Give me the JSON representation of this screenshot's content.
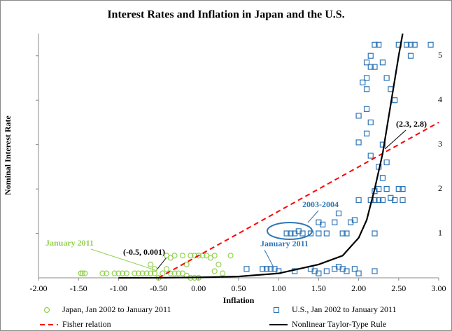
{
  "chart_data": {
    "type": "scatter",
    "title": "Interest Rates and Inflation in Japan and the U.S.",
    "xlabel": "Inflation",
    "ylabel": "Nominal Interest Rate",
    "xlim": [
      -2,
      3
    ],
    "ylim": [
      0,
      5.5
    ],
    "xticks": [
      {
        "value": -2,
        "label": "-2.00"
      },
      {
        "value": -1.5,
        "label": "-1.50"
      },
      {
        "value": -1,
        "label": "-1.00"
      },
      {
        "value": -0.5,
        "label": "-0.50"
      },
      {
        "value": 0,
        "label": "0.00"
      },
      {
        "value": 0.5,
        "label": "0.50"
      },
      {
        "value": 1,
        "label": "1.00"
      },
      {
        "value": 1.5,
        "label": "1.50"
      },
      {
        "value": 2,
        "label": "2.00"
      },
      {
        "value": 2.5,
        "label": "2.50"
      },
      {
        "value": 3,
        "label": "3.00"
      }
    ],
    "yticks": [
      1,
      2,
      3,
      4,
      5
    ],
    "grid": false,
    "legend": "bottom",
    "annotations": [
      "January 2011",
      "(-0.5, 0.001)",
      "2003-2004",
      "January 2011",
      "(2.3, 2.8)"
    ],
    "series": [
      {
        "name": "Japan, Jan 2002 to January 2011",
        "color": "#92d050",
        "mode": "marker",
        "marker": "circle",
        "x": [
          -1.47,
          -1.45,
          -1.42,
          -1.2,
          -1.15,
          -1.05,
          -1.0,
          -0.95,
          -0.9,
          -0.8,
          -0.75,
          -0.7,
          -0.65,
          -0.6,
          -0.55,
          -0.5,
          -0.45,
          -0.4,
          -0.35,
          -0.3,
          -0.25,
          -0.2,
          -0.15,
          -0.1,
          -0.05,
          0.0,
          -0.4,
          -0.35,
          -0.3,
          -0.2,
          -0.15,
          -0.1,
          -0.05,
          0.0,
          0.05,
          0.1,
          0.15,
          0.2,
          0.25,
          0.4,
          0.2,
          0.3,
          -0.6,
          -0.55
        ],
        "values": [
          0.1,
          0.1,
          0.1,
          0.1,
          0.1,
          0.1,
          0.1,
          0.1,
          0.1,
          0.1,
          0.1,
          0.1,
          0.1,
          0.1,
          0.1,
          0.0,
          0.1,
          0.2,
          0.1,
          0.1,
          0.1,
          0.1,
          0.05,
          0.0,
          0.0,
          0.0,
          0.5,
          0.45,
          0.5,
          0.5,
          0.3,
          0.5,
          0.5,
          0.5,
          0.5,
          0.5,
          0.45,
          0.5,
          0.3,
          0.5,
          0.15,
          0.1,
          0.3,
          0.2
        ]
      },
      {
        "name": "U.S., Jan 2002 to January 2011",
        "color": "#2e75b6",
        "mode": "marker",
        "marker": "square",
        "x": [
          0.6,
          0.8,
          0.85,
          0.9,
          0.95,
          1.0,
          1.2,
          1.4,
          1.45,
          1.5,
          1.6,
          1.7,
          1.75,
          1.8,
          1.85,
          1.95,
          2.0,
          2.2,
          1.1,
          1.15,
          1.2,
          1.25,
          1.3,
          1.4,
          1.5,
          1.5,
          1.55,
          1.6,
          1.7,
          1.75,
          1.8,
          1.85,
          1.9,
          1.95,
          2.0,
          2.2,
          2.2,
          2.25,
          2.3,
          2.35,
          2.45,
          2.5,
          2.55,
          2.55,
          2.4,
          2.25,
          2.2,
          2.15,
          2.3,
          2.25,
          2.35,
          2.3,
          2.15,
          2.0,
          2.1,
          2.15,
          2.0,
          2.1,
          2.1,
          2.05,
          2.1,
          2.1,
          2.15,
          2.15,
          2.2,
          2.25,
          2.3,
          2.35,
          2.4,
          2.45,
          2.5,
          2.6,
          2.65,
          2.7,
          2.9,
          2.65,
          2.2
        ],
        "values": [
          0.2,
          0.2,
          0.2,
          0.2,
          0.2,
          0.15,
          0.15,
          0.2,
          0.15,
          0.1,
          0.15,
          0.2,
          0.25,
          0.2,
          0.15,
          0.2,
          0.1,
          0.15,
          1.0,
          1.0,
          1.0,
          1.05,
          1.0,
          1.0,
          1.0,
          1.25,
          1.2,
          1.0,
          1.25,
          1.45,
          1.0,
          1.0,
          1.25,
          1.3,
          1.75,
          1.0,
          1.75,
          1.75,
          1.75,
          2.0,
          1.75,
          2.0,
          1.75,
          2.0,
          1.8,
          2.0,
          1.95,
          1.75,
          2.25,
          2.5,
          2.6,
          3.0,
          2.75,
          3.05,
          3.25,
          3.5,
          3.65,
          3.8,
          4.25,
          4.4,
          4.5,
          4.85,
          5.0,
          4.75,
          5.25,
          5.25,
          4.85,
          4.5,
          4.25,
          4.0,
          5.25,
          5.25,
          5.25,
          5.25,
          5.25,
          5.0,
          4.75
        ]
      },
      {
        "name": "Fisher relation",
        "color": "#ff0000",
        "mode": "line",
        "dash": true,
        "x": [
          -0.5,
          3.0
        ],
        "values": [
          0,
          3.5
        ]
      },
      {
        "name": "Nonlinear Taylor-Type Rule",
        "color": "#000000",
        "mode": "line",
        "dash": false,
        "x": [
          -1.0,
          -0.5,
          0,
          0.5,
          1.0,
          1.5,
          1.8,
          2.0,
          2.1,
          2.2,
          2.3,
          2.4,
          2.5,
          2.55
        ],
        "values": [
          0,
          0.001,
          0.01,
          0.03,
          0.1,
          0.3,
          0.5,
          0.9,
          1.3,
          2.0,
          2.8,
          3.9,
          5.0,
          5.5
        ]
      }
    ]
  }
}
